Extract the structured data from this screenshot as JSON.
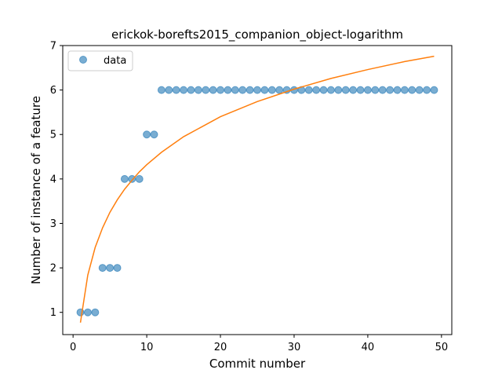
{
  "chart_data": {
    "type": "scatter",
    "title": "erickok-borefts2015_companion_object-logarithm",
    "xlabel": "Commit number",
    "ylabel": "Number of instance of a feature",
    "xlim": [
      -1.4,
      51.4
    ],
    "ylim": [
      0.5,
      7.0
    ],
    "xticks": [
      0,
      10,
      20,
      30,
      40,
      50
    ],
    "yticks": [
      1,
      2,
      3,
      4,
      5,
      6,
      7
    ],
    "legend": {
      "position": "top-left",
      "entries": [
        "data"
      ]
    },
    "grid": false,
    "series": [
      {
        "name": "data",
        "kind": "markers",
        "color": "#1f77b4",
        "x": [
          1,
          2,
          3,
          4,
          5,
          6,
          7,
          8,
          9,
          10,
          11,
          12,
          13,
          14,
          15,
          16,
          17,
          18,
          19,
          20,
          21,
          22,
          23,
          24,
          25,
          26,
          27,
          28,
          29,
          30,
          31,
          32,
          33,
          34,
          35,
          36,
          37,
          38,
          39,
          40,
          41,
          42,
          43,
          44,
          45,
          46,
          47,
          48,
          49
        ],
        "y": [
          1,
          1,
          1,
          2,
          2,
          2,
          4,
          4,
          4,
          5,
          5,
          6,
          6,
          6,
          6,
          6,
          6,
          6,
          6,
          6,
          6,
          6,
          6,
          6,
          6,
          6,
          6,
          6,
          6,
          6,
          6,
          6,
          6,
          6,
          6,
          6,
          6,
          6,
          6,
          6,
          6,
          6,
          6,
          6,
          6,
          6,
          6,
          6,
          6
        ]
      },
      {
        "kind": "line",
        "color": "#ff7f0e",
        "x": [
          1,
          2,
          3,
          4,
          5,
          6,
          7,
          8,
          9,
          10,
          12,
          15,
          20,
          25,
          30,
          35,
          40,
          45,
          49
        ],
        "y": [
          0.77,
          1.84,
          2.46,
          2.9,
          3.25,
          3.53,
          3.77,
          3.97,
          4.16,
          4.32,
          4.6,
          4.95,
          5.4,
          5.74,
          6.02,
          6.26,
          6.46,
          6.64,
          6.76
        ]
      }
    ]
  }
}
